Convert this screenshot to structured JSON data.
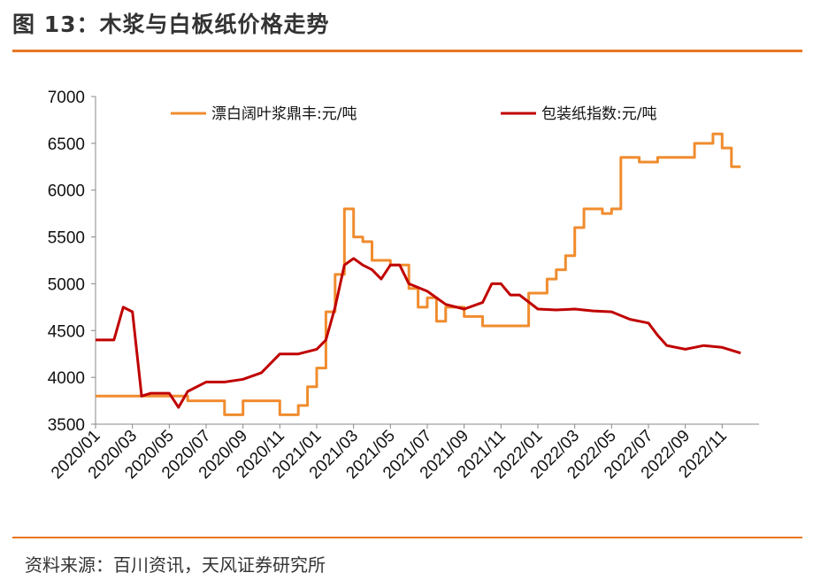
{
  "header": {
    "title": "图 13：木浆与白板纸价格走势"
  },
  "footer": {
    "source": "资料来源：百川资讯，天风证券研究所"
  },
  "colors": {
    "accent": "#E87722",
    "pulp": "#F08C2E",
    "board": "#C00000"
  },
  "chart_data": {
    "type": "line",
    "title": "",
    "xlabel": "",
    "ylabel": "",
    "ylim": [
      3500,
      7000
    ],
    "yticks": [
      "7000",
      "6500",
      "6000",
      "5500",
      "5000",
      "4500",
      "4000",
      "3500"
    ],
    "xticks": [
      "2020/01",
      "2020/03",
      "2020/05",
      "2020/07",
      "2020/09",
      "2020/11",
      "2021/01",
      "2021/03",
      "2021/05",
      "2021/07",
      "2021/09",
      "2021/11",
      "2022/01",
      "2022/03",
      "2022/05",
      "2022/07",
      "2022/09",
      "2022/11"
    ],
    "legend_position": "top",
    "series": [
      {
        "name": "漂白阔叶浆鼎丰:元/吨",
        "color": "#F08C2E",
        "step": true,
        "points": [
          [
            "2020/01",
            3800
          ],
          [
            "2020/04",
            3800
          ],
          [
            "2020/06",
            3750
          ],
          [
            "2020/08",
            3600
          ],
          [
            "2020/09",
            3750
          ],
          [
            "2020/11",
            3600
          ],
          [
            "2020/12",
            3700
          ],
          [
            "2020/12.5",
            3900
          ],
          [
            "2021/01",
            4100
          ],
          [
            "2021/01.5",
            4700
          ],
          [
            "2021/02",
            5100
          ],
          [
            "2021/02.5",
            5800
          ],
          [
            "2021/03",
            5500
          ],
          [
            "2021/03.5",
            5450
          ],
          [
            "2021/04",
            5250
          ],
          [
            "2021/05",
            5200
          ],
          [
            "2021/06",
            4950
          ],
          [
            "2021/06.5",
            4750
          ],
          [
            "2021/07",
            4850
          ],
          [
            "2021/07.5",
            4600
          ],
          [
            "2021/08",
            4750
          ],
          [
            "2021/09",
            4650
          ],
          [
            "2021/10",
            4550
          ],
          [
            "2021/12",
            4550
          ],
          [
            "2021/12.5",
            4900
          ],
          [
            "2022/01",
            4900
          ],
          [
            "2022/01.5",
            5050
          ],
          [
            "2022/02",
            5150
          ],
          [
            "2022/02.5",
            5300
          ],
          [
            "2022/03",
            5600
          ],
          [
            "2022/03.5",
            5800
          ],
          [
            "2022/04.5",
            5750
          ],
          [
            "2022/05",
            5800
          ],
          [
            "2022/05.5",
            6350
          ],
          [
            "2022/06.5",
            6300
          ],
          [
            "2022/07.5",
            6350
          ],
          [
            "2022/09",
            6350
          ],
          [
            "2022/09.5",
            6500
          ],
          [
            "2022/10.5",
            6600
          ],
          [
            "2022/11",
            6450
          ],
          [
            "2022/11.5",
            6250
          ],
          [
            "2022/12",
            6250
          ]
        ]
      },
      {
        "name": "包装纸指数:元/吨",
        "color": "#C00000",
        "step": false,
        "points": [
          [
            "2020/01",
            4400
          ],
          [
            "2020/02",
            4400
          ],
          [
            "2020/02.5",
            4750
          ],
          [
            "2020/03",
            4700
          ],
          [
            "2020/03.5",
            3800
          ],
          [
            "2020/04",
            3830
          ],
          [
            "2020/05",
            3830
          ],
          [
            "2020/05.5",
            3680
          ],
          [
            "2020/06",
            3850
          ],
          [
            "2020/07",
            3950
          ],
          [
            "2020/08",
            3950
          ],
          [
            "2020/09",
            3980
          ],
          [
            "2020/10",
            4050
          ],
          [
            "2020/11",
            4250
          ],
          [
            "2020/12",
            4250
          ],
          [
            "2021/01",
            4300
          ],
          [
            "2021/01.5",
            4400
          ],
          [
            "2021/02",
            4750
          ],
          [
            "2021/02.5",
            5200
          ],
          [
            "2021/03",
            5270
          ],
          [
            "2021/03.5",
            5200
          ],
          [
            "2021/04",
            5150
          ],
          [
            "2021/04.5",
            5050
          ],
          [
            "2021/05",
            5200
          ],
          [
            "2021/05.5",
            5200
          ],
          [
            "2021/06",
            5000
          ],
          [
            "2021/07",
            4920
          ],
          [
            "2021/08",
            4780
          ],
          [
            "2021/09",
            4730
          ],
          [
            "2021/10",
            4800
          ],
          [
            "2021/10.5",
            5000
          ],
          [
            "2021/11",
            5000
          ],
          [
            "2021/11.5",
            4880
          ],
          [
            "2021/12",
            4880
          ],
          [
            "2022/01",
            4730
          ],
          [
            "2022/02",
            4720
          ],
          [
            "2022/03",
            4730
          ],
          [
            "2022/04",
            4710
          ],
          [
            "2022/05",
            4700
          ],
          [
            "2022/06",
            4620
          ],
          [
            "2022/07",
            4580
          ],
          [
            "2022/07.5",
            4450
          ],
          [
            "2022/08",
            4340
          ],
          [
            "2022/09",
            4300
          ],
          [
            "2022/09.5",
            4320
          ],
          [
            "2022/10",
            4340
          ],
          [
            "2022/11",
            4320
          ],
          [
            "2022/12",
            4260
          ]
        ]
      }
    ]
  }
}
